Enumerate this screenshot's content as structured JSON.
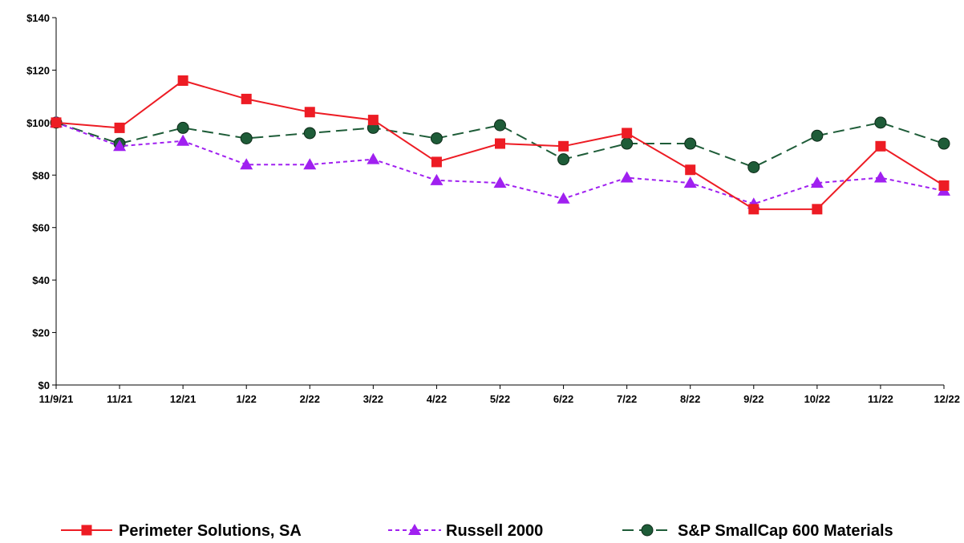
{
  "chart_data": {
    "type": "line",
    "title": "",
    "xlabel": "",
    "ylabel": "",
    "categories": [
      "11/9/21",
      "11/21",
      "12/21",
      "1/22",
      "2/22",
      "3/22",
      "4/22",
      "5/22",
      "6/22",
      "7/22",
      "8/22",
      "9/22",
      "10/22",
      "11/22",
      "12/22"
    ],
    "ylim": [
      0,
      140
    ],
    "yticks": [
      0,
      20,
      40,
      60,
      80,
      100,
      120,
      140
    ],
    "ytick_labels": [
      "$0",
      "$20",
      "$40",
      "$60",
      "$80",
      "$100",
      "$120",
      "$140"
    ],
    "grid": false,
    "legend_position": "bottom",
    "series": [
      {
        "name": "Perimeter Solutions, SA",
        "color": "#ed1c24",
        "marker": "square",
        "line_style": "solid",
        "values": [
          100,
          98,
          116,
          109,
          104,
          101,
          85,
          92,
          91,
          96,
          82,
          67,
          67,
          91,
          76
        ]
      },
      {
        "name": "Russell 2000",
        "color": "#a020f0",
        "marker": "triangle",
        "line_style": "dashed",
        "values": [
          100,
          91,
          93,
          84,
          84,
          86,
          78,
          77,
          71,
          79,
          77,
          69,
          77,
          79,
          74
        ]
      },
      {
        "name": "S&P SmallCap 600 Materials",
        "color": "#1e5c38",
        "marker": "circle",
        "line_style": "long-dashed",
        "values": [
          100,
          92,
          98,
          94,
          96,
          98,
          94,
          99,
          86,
          92,
          92,
          83,
          95,
          100,
          92
        ]
      }
    ]
  }
}
